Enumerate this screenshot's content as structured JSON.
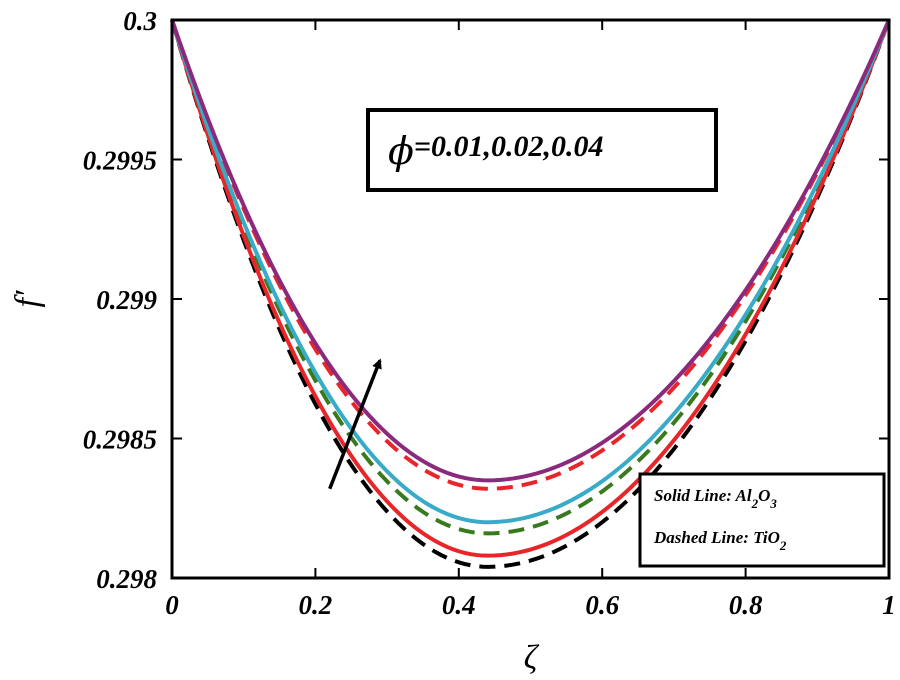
{
  "chart_data": {
    "type": "line",
    "xlabel": "ζ",
    "ylabel": "f′",
    "xlim": [
      0,
      1
    ],
    "ylim": [
      0.298,
      0.3
    ],
    "x_ticks": [
      0,
      0.2,
      0.4,
      0.6,
      0.8,
      1
    ],
    "x_tick_labels": [
      "0",
      "0.2",
      "0.4",
      "0.6",
      "0.8",
      "1"
    ],
    "y_ticks": [
      0.298,
      0.2985,
      0.299,
      0.2995,
      0.3
    ],
    "y_tick_labels": [
      "0.298",
      "0.2985",
      "0.299",
      "0.2995",
      "0.3"
    ],
    "annotation": {
      "symbol": "ϕ",
      "text": "=0.01,0.02,0.04",
      "arrow_from": [
        0.22,
        0.29832
      ],
      "arrow_to": [
        0.29,
        0.29878
      ]
    },
    "legend": {
      "position": "bottom-right",
      "solid_prefix": "Solid Line: Al",
      "solid_sub1": "2",
      "solid_mid": "O",
      "solid_sub2": "3",
      "dashed_prefix": "Dashed Line: TiO",
      "dashed_sub": "2"
    },
    "series": [
      {
        "name": "Al2O3 ϕ=0.01",
        "style": "solid",
        "color": "#e8262a",
        "x_min": 0.44,
        "y_min": 0.29808
      },
      {
        "name": "Al2O3 ϕ=0.02",
        "style": "solid",
        "color": "#37abc8",
        "x_min": 0.44,
        "y_min": 0.2982
      },
      {
        "name": "Al2O3 ϕ=0.04",
        "style": "solid",
        "color": "#8b2a7d",
        "x_min": 0.44,
        "y_min": 0.29835
      },
      {
        "name": "TiO2 ϕ=0.01",
        "style": "dashed",
        "color": "#000000",
        "x_min": 0.44,
        "y_min": 0.29804
      },
      {
        "name": "TiO2 ϕ=0.02",
        "style": "dashed",
        "color": "#3a7a1e",
        "x_min": 0.44,
        "y_min": 0.29816
      },
      {
        "name": "TiO2 ϕ=0.04",
        "style": "dashed",
        "color": "#e8262a",
        "x_min": 0.44,
        "y_min": 0.29832
      }
    ]
  }
}
